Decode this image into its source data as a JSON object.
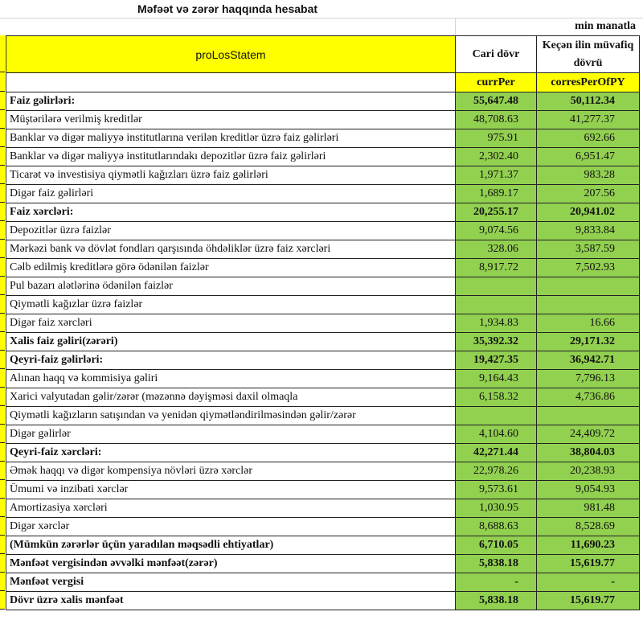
{
  "title": "Məfəət və zərər haqqında hesabat",
  "unit": "min manatla",
  "header": {
    "label_col": "proLosStatem",
    "col_current": "Cari dövr",
    "col_previous": "Keçən ilin müvafiq dövrü",
    "code_current": "currPer",
    "code_previous": "corresPerOfPY"
  },
  "colors": {
    "header_yellow": "#ffff00",
    "value_green": "#92d050"
  },
  "rows": [
    {
      "label": "Faiz gəlirləri:",
      "cur": "55,647.48",
      "prev": "50,112.34",
      "bold": true
    },
    {
      "label": "Müştərilərə verilmiş kreditlər",
      "cur": "48,708.63",
      "prev": "41,277.37"
    },
    {
      "label": "Banklar və digər maliyyə institutlarına verilən kreditlər üzrə faiz gəlirləri",
      "cur": "975.91",
      "prev": "692.66"
    },
    {
      "label": "Banklar və digər maliyyə institutlarındakı depozitlər üzrə faiz gəlirləri",
      "cur": "2,302.40",
      "prev": "6,951.47"
    },
    {
      "label": "Ticarət və investisiya qiymətli kağızları üzrə faiz gəlirləri",
      "cur": "1,971.37",
      "prev": "983.28"
    },
    {
      "label": "Digər faiz gəlirləri",
      "cur": "1,689.17",
      "prev": "207.56"
    },
    {
      "label": "Faiz xərcləri:",
      "cur": "20,255.17",
      "prev": "20,941.02",
      "bold": true
    },
    {
      "label": "Depozitlər üzrə faizlər",
      "cur": "9,074.56",
      "prev": "9,833.84"
    },
    {
      "label": "Mərkəzi bank və dövlət fondları qarşısında öhdəliklər üzrə faiz xərcləri",
      "cur": "328.06",
      "prev": "3,587.59"
    },
    {
      "label": "Cəlb edilmiş kreditlərə görə ödənilən faizlər",
      "cur": "8,917.72",
      "prev": "7,502.93"
    },
    {
      "label": "Pul bazarı alətlərinə ödənilən faizlər",
      "cur": "",
      "prev": ""
    },
    {
      "label": "Qiymətli kağızlar üzrə faizlər",
      "cur": "",
      "prev": ""
    },
    {
      "label": "Digər faiz xərcləri",
      "cur": "1,934.83",
      "prev": "16.66"
    },
    {
      "label": "Xalis faiz gəliri(zərəri)",
      "cur": "35,392.32",
      "prev": "29,171.32",
      "bold": true
    },
    {
      "label": "Qeyri-faiz gəlirləri:",
      "cur": "19,427.35",
      "prev": "36,942.71",
      "bold": true
    },
    {
      "label": "Alınan haqq və kommisiya gəliri",
      "cur": "9,164.43",
      "prev": "7,796.13"
    },
    {
      "label": "Xarici valyutadan gəlir/zərər (məzənnə dəyişməsi daxil olmaqla",
      "cur": "6,158.32",
      "prev": "4,736.86"
    },
    {
      "label": "Qiymətli kağızların satışından və yenidən qiymətləndirilməsindən gəlir/zərər",
      "cur": "",
      "prev": ""
    },
    {
      "label": "Digər gəlirlər",
      "cur": "4,104.60",
      "prev": "24,409.72"
    },
    {
      "label": "Qeyri-faiz xərcləri:",
      "cur": "42,271.44",
      "prev": "38,804.03",
      "bold": true
    },
    {
      "label": "Əmək haqqı və digər kompensiya növləri üzrə xərclər",
      "cur": "22,978.26",
      "prev": "20,238.93"
    },
    {
      "label": "Ümumi və inzibati xərclər",
      "cur": "9,573.61",
      "prev": "9,054.93"
    },
    {
      "label": "Amortizasiya xərcləri",
      "cur": "1,030.95",
      "prev": "981.48"
    },
    {
      "label": "Digər xərclər",
      "cur": "8,688.63",
      "prev": "8,528.69"
    },
    {
      "label": "(Mümkün zərərlər üçün yaradılan məqsədli ehtiyatlar)",
      "cur": "6,710.05",
      "prev": "11,690.23",
      "bold": true
    },
    {
      "label": "Mənfəət vergisindən əvvəlki mənfəət(zərər)",
      "cur": "5,838.18",
      "prev": "15,619.77",
      "bold": true
    },
    {
      "label": "Mənfəət vergisi",
      "cur": "-",
      "prev": "-",
      "bold": true
    },
    {
      "label": "Dövr üzrə xalis mənfəət",
      "cur": "5,838.18",
      "prev": "15,619.77",
      "bold": true
    }
  ]
}
